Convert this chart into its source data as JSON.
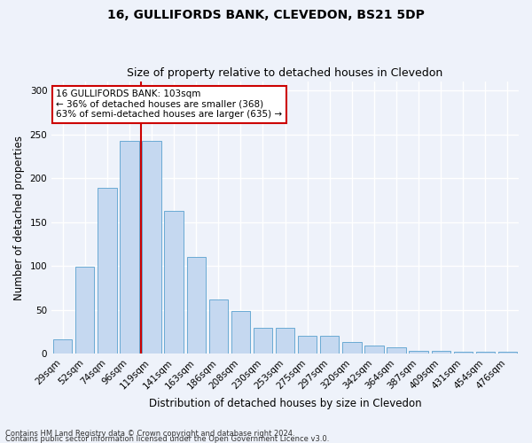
{
  "title1": "16, GULLIFORDS BANK, CLEVEDON, BS21 5DP",
  "title2": "Size of property relative to detached houses in Clevedon",
  "xlabel": "Distribution of detached houses by size in Clevedon",
  "ylabel": "Number of detached properties",
  "categories": [
    "29sqm",
    "52sqm",
    "74sqm",
    "96sqm",
    "119sqm",
    "141sqm",
    "163sqm",
    "186sqm",
    "208sqm",
    "230sqm",
    "253sqm",
    "275sqm",
    "297sqm",
    "320sqm",
    "342sqm",
    "364sqm",
    "387sqm",
    "409sqm",
    "431sqm",
    "454sqm",
    "476sqm"
  ],
  "values": [
    17,
    99,
    189,
    242,
    242,
    163,
    110,
    62,
    49,
    30,
    30,
    21,
    21,
    14,
    10,
    8,
    3,
    3,
    2,
    2,
    2
  ],
  "bar_color": "#c5d8f0",
  "bar_edge_color": "#6aaad4",
  "vline_x_index": 3.5,
  "vline_color": "#cc0000",
  "annotation_line1": "16 GULLIFORDS BANK: 103sqm",
  "annotation_line2": "← 36% of detached houses are smaller (368)",
  "annotation_line3": "63% of semi-detached houses are larger (635) →",
  "annotation_box_color": "#ffffff",
  "annotation_box_edge": "#cc0000",
  "annotation_fontsize": 7.5,
  "footer1": "Contains HM Land Registry data © Crown copyright and database right 2024.",
  "footer2": "Contains public sector information licensed under the Open Government Licence v3.0.",
  "ylim": [
    0,
    310
  ],
  "yticks": [
    0,
    50,
    100,
    150,
    200,
    250,
    300
  ],
  "background_color": "#eef2fa",
  "grid_color": "#ffffff",
  "title_fontsize": 10,
  "subtitle_fontsize": 9,
  "tick_fontsize": 7.5,
  "ylabel_fontsize": 8.5,
  "xlabel_fontsize": 8.5,
  "footer_fontsize": 6.0
}
